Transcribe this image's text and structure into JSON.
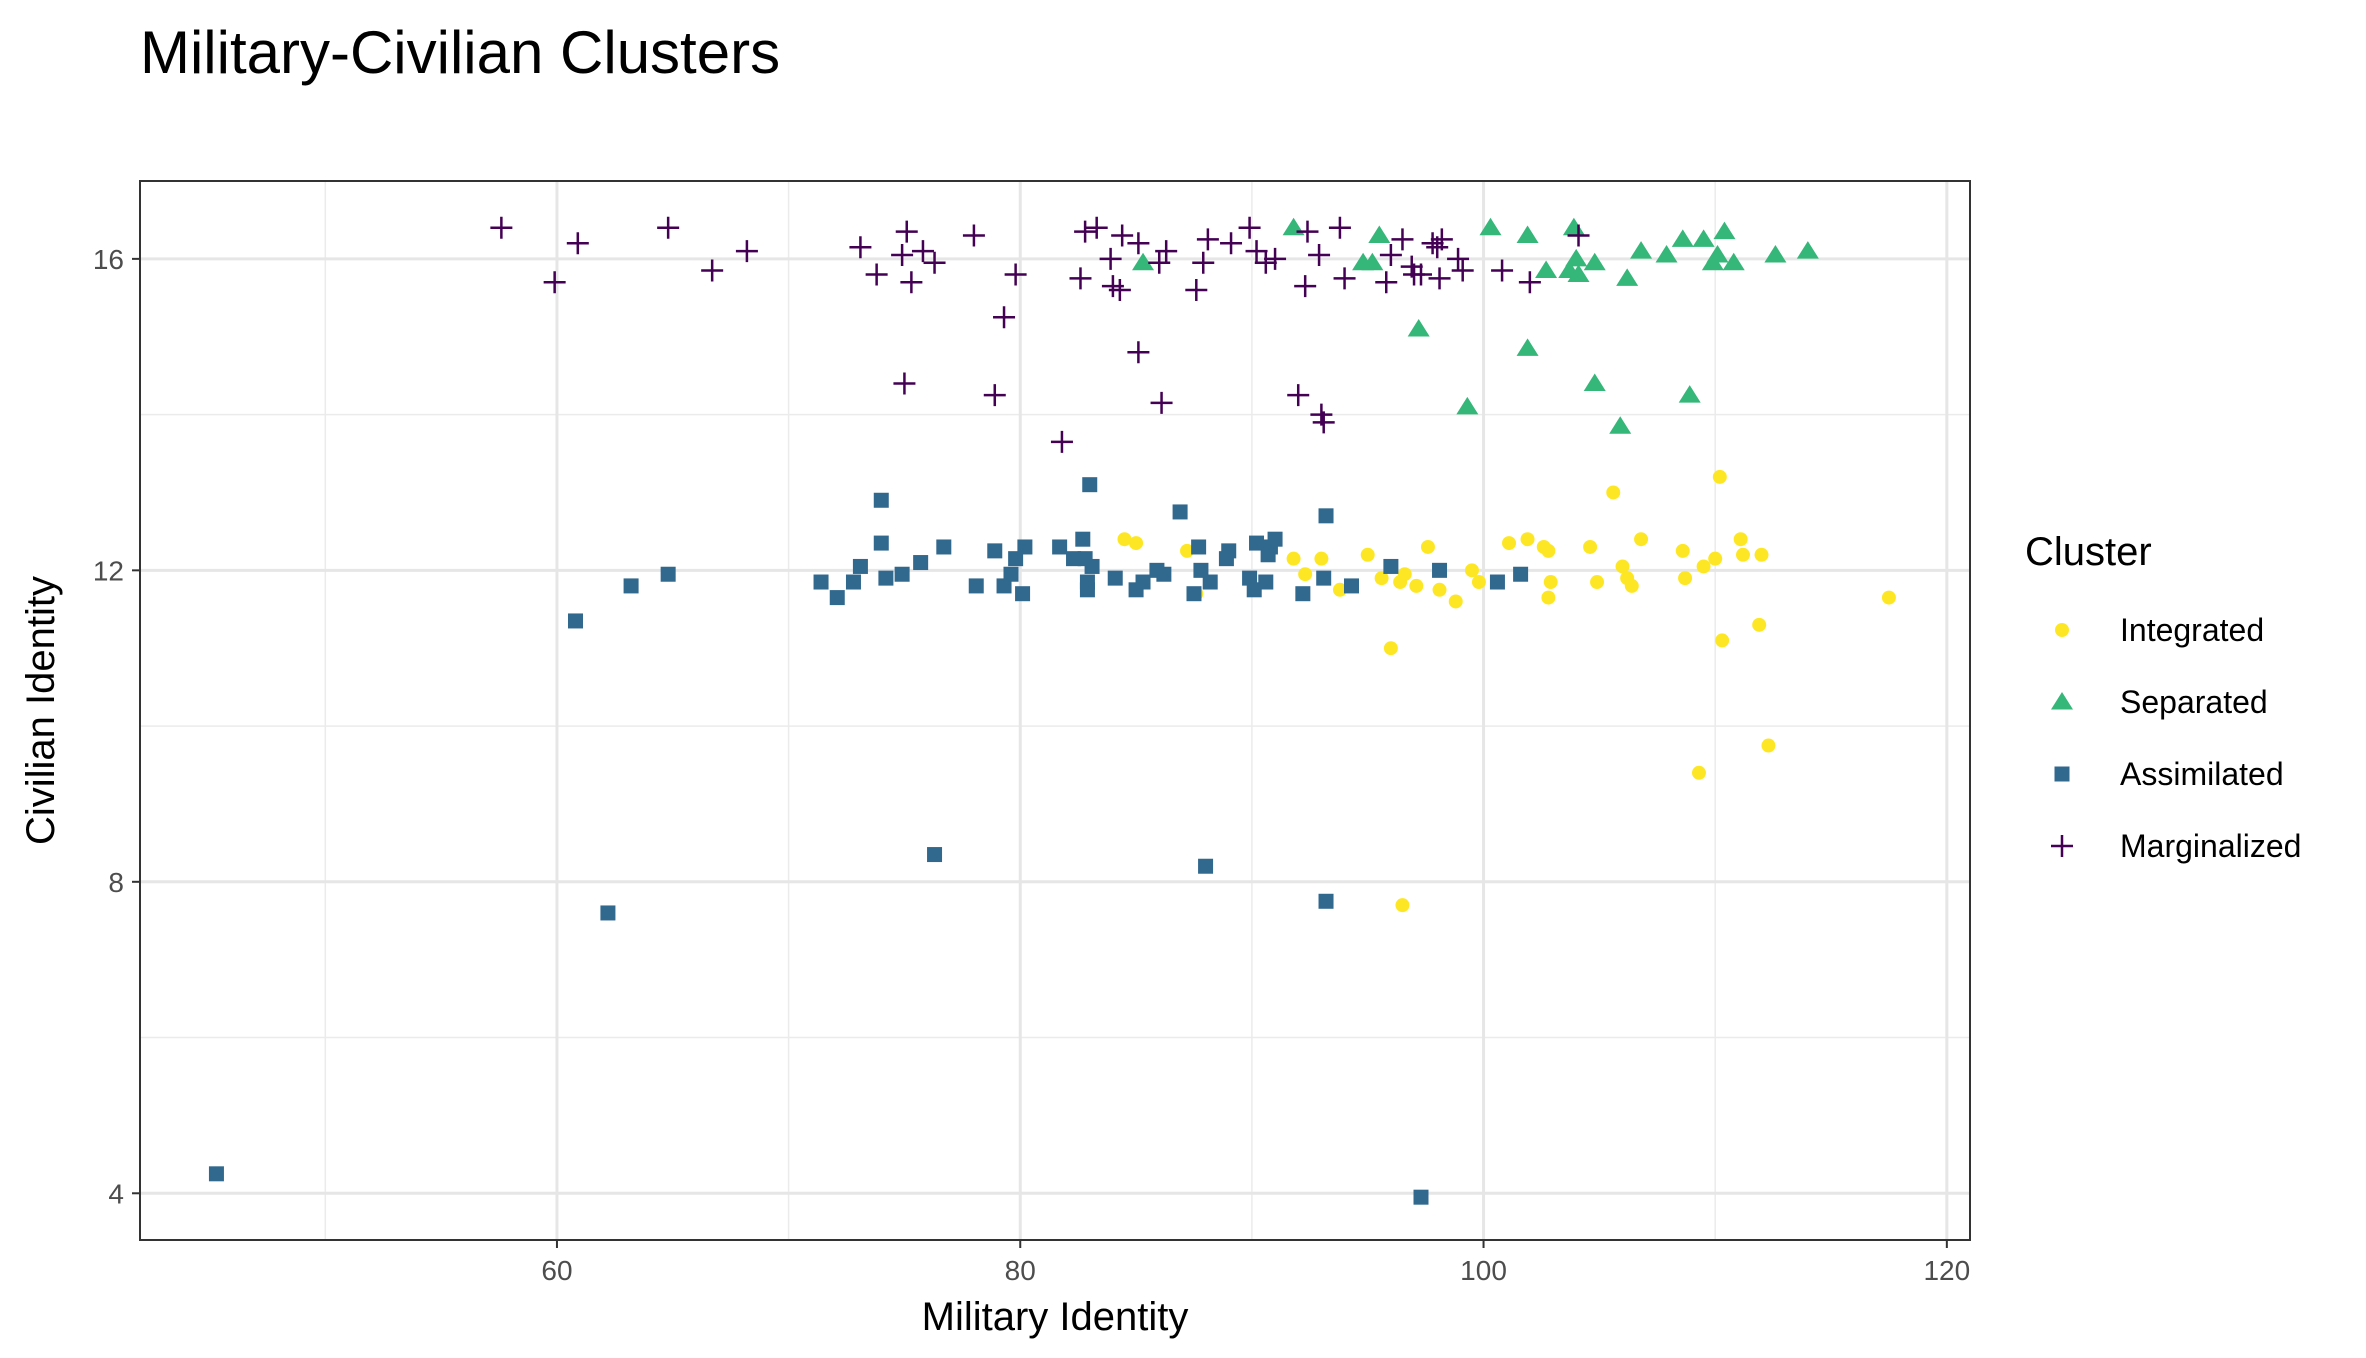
{
  "chart_data": {
    "type": "scatter",
    "title": "Military-Civilian Clusters",
    "xlabel": "Military Identity",
    "ylabel": "Civilian Identity",
    "xlim": [
      42,
      121
    ],
    "ylim": [
      3.4,
      17
    ],
    "x_ticks": [
      60,
      80,
      100,
      120
    ],
    "y_ticks": [
      4,
      8,
      12,
      16
    ],
    "grid": true,
    "legend": {
      "title": "Cluster",
      "position": "right"
    },
    "series": [
      {
        "name": "Integrated",
        "color": "#fde725",
        "shape": "circle",
        "points": [
          [
            84.5,
            12.4
          ],
          [
            85.0,
            12.35
          ],
          [
            87.2,
            12.25
          ],
          [
            87.6,
            11.7
          ],
          [
            91.8,
            12.15
          ],
          [
            92.3,
            11.95
          ],
          [
            93.0,
            12.15
          ],
          [
            93.8,
            11.75
          ],
          [
            95.0,
            12.2
          ],
          [
            95.6,
            11.9
          ],
          [
            96.0,
            11.0
          ],
          [
            96.4,
            11.85
          ],
          [
            96.6,
            11.95
          ],
          [
            97.1,
            11.8
          ],
          [
            97.6,
            12.3
          ],
          [
            98.1,
            11.75
          ],
          [
            98.8,
            11.6
          ],
          [
            99.5,
            12.0
          ],
          [
            99.8,
            11.85
          ],
          [
            101.1,
            12.35
          ],
          [
            101.9,
            12.4
          ],
          [
            102.6,
            12.3
          ],
          [
            102.8,
            12.25
          ],
          [
            102.8,
            11.65
          ],
          [
            102.9,
            11.85
          ],
          [
            104.6,
            12.3
          ],
          [
            104.9,
            11.85
          ],
          [
            105.6,
            13.0
          ],
          [
            106.0,
            12.05
          ],
          [
            106.2,
            11.9
          ],
          [
            106.4,
            11.8
          ],
          [
            106.8,
            12.4
          ],
          [
            108.6,
            12.25
          ],
          [
            108.7,
            11.9
          ],
          [
            109.3,
            9.4
          ],
          [
            109.5,
            12.05
          ],
          [
            110.0,
            12.15
          ],
          [
            110.2,
            13.2
          ],
          [
            110.3,
            11.1
          ],
          [
            111.1,
            12.4
          ],
          [
            111.2,
            12.2
          ],
          [
            111.9,
            11.3
          ],
          [
            112.0,
            12.2
          ],
          [
            112.3,
            9.75
          ],
          [
            117.5,
            11.65
          ],
          [
            96.5,
            7.7
          ]
        ]
      },
      {
        "name": "Separated",
        "color": "#35b779",
        "shape": "triangle",
        "points": [
          [
            85.3,
            15.95
          ],
          [
            91.8,
            16.4
          ],
          [
            94.8,
            15.95
          ],
          [
            95.2,
            15.95
          ],
          [
            95.5,
            16.3
          ],
          [
            97.2,
            15.1
          ],
          [
            99.3,
            14.1
          ],
          [
            100.3,
            16.4
          ],
          [
            101.9,
            16.3
          ],
          [
            101.9,
            14.85
          ],
          [
            102.7,
            15.85
          ],
          [
            103.7,
            15.85
          ],
          [
            103.9,
            16.4
          ],
          [
            104.0,
            16.0
          ],
          [
            104.1,
            15.8
          ],
          [
            104.8,
            15.95
          ],
          [
            104.8,
            14.4
          ],
          [
            105.9,
            13.85
          ],
          [
            106.2,
            15.75
          ],
          [
            106.8,
            16.1
          ],
          [
            107.9,
            16.05
          ],
          [
            108.6,
            16.25
          ],
          [
            108.9,
            14.25
          ],
          [
            109.5,
            16.25
          ],
          [
            109.9,
            15.95
          ],
          [
            110.1,
            16.05
          ],
          [
            110.4,
            16.35
          ],
          [
            110.8,
            15.95
          ],
          [
            112.6,
            16.05
          ],
          [
            114.0,
            16.1
          ]
        ]
      },
      {
        "name": "Assimilated",
        "color": "#31688e",
        "shape": "square",
        "points": [
          [
            45.3,
            4.25
          ],
          [
            60.8,
            11.35
          ],
          [
            62.2,
            7.6
          ],
          [
            63.2,
            11.8
          ],
          [
            64.8,
            11.95
          ],
          [
            71.4,
            11.85
          ],
          [
            72.1,
            11.65
          ],
          [
            72.8,
            11.85
          ],
          [
            73.1,
            12.05
          ],
          [
            74.0,
            12.9
          ],
          [
            74.0,
            12.35
          ],
          [
            74.2,
            11.9
          ],
          [
            74.9,
            11.95
          ],
          [
            75.7,
            12.1
          ],
          [
            76.3,
            8.35
          ],
          [
            76.7,
            12.3
          ],
          [
            78.1,
            11.8
          ],
          [
            78.9,
            12.25
          ],
          [
            79.3,
            11.8
          ],
          [
            79.6,
            11.95
          ],
          [
            79.8,
            12.15
          ],
          [
            80.1,
            11.7
          ],
          [
            80.2,
            12.3
          ],
          [
            81.7,
            12.3
          ],
          [
            82.3,
            12.15
          ],
          [
            82.7,
            12.4
          ],
          [
            82.8,
            12.15
          ],
          [
            82.9,
            11.75
          ],
          [
            82.9,
            11.85
          ],
          [
            83.0,
            13.1
          ],
          [
            83.1,
            12.05
          ],
          [
            84.1,
            11.9
          ],
          [
            85.0,
            11.75
          ],
          [
            85.3,
            11.85
          ],
          [
            85.9,
            12.0
          ],
          [
            86.2,
            11.95
          ],
          [
            86.9,
            12.75
          ],
          [
            87.5,
            11.7
          ],
          [
            87.7,
            12.3
          ],
          [
            87.8,
            12.0
          ],
          [
            88.0,
            8.2
          ],
          [
            88.2,
            11.85
          ],
          [
            88.9,
            12.15
          ],
          [
            89.0,
            12.25
          ],
          [
            89.9,
            11.9
          ],
          [
            90.1,
            11.75
          ],
          [
            90.2,
            12.35
          ],
          [
            90.6,
            11.85
          ],
          [
            90.7,
            12.2
          ],
          [
            90.8,
            12.3
          ],
          [
            91.0,
            12.4
          ],
          [
            92.2,
            11.7
          ],
          [
            93.1,
            11.9
          ],
          [
            93.2,
            12.7
          ],
          [
            93.2,
            7.75
          ],
          [
            94.3,
            11.8
          ],
          [
            96.0,
            12.05
          ],
          [
            97.3,
            3.95
          ],
          [
            98.1,
            12.0
          ],
          [
            100.6,
            11.85
          ],
          [
            101.6,
            11.95
          ]
        ]
      },
      {
        "name": "Marginalized",
        "color": "#440154",
        "shape": "plus",
        "points": [
          [
            57.6,
            16.4
          ],
          [
            59.9,
            15.7
          ],
          [
            60.9,
            16.2
          ],
          [
            64.8,
            16.4
          ],
          [
            66.7,
            15.85
          ],
          [
            68.2,
            16.1
          ],
          [
            73.1,
            16.15
          ],
          [
            73.8,
            15.8
          ],
          [
            74.9,
            16.05
          ],
          [
            75.0,
            14.4
          ],
          [
            75.1,
            16.35
          ],
          [
            75.3,
            15.7
          ],
          [
            75.8,
            16.1
          ],
          [
            76.3,
            15.95
          ],
          [
            78.0,
            16.3
          ],
          [
            78.9,
            14.25
          ],
          [
            79.3,
            15.25
          ],
          [
            79.8,
            15.8
          ],
          [
            81.8,
            13.65
          ],
          [
            82.6,
            15.75
          ],
          [
            82.8,
            16.35
          ],
          [
            83.3,
            16.4
          ],
          [
            83.9,
            16.0
          ],
          [
            84.0,
            15.65
          ],
          [
            84.3,
            15.6
          ],
          [
            84.4,
            16.3
          ],
          [
            85.1,
            16.2
          ],
          [
            85.1,
            14.8
          ],
          [
            86.0,
            15.95
          ],
          [
            86.1,
            14.15
          ],
          [
            86.3,
            16.1
          ],
          [
            87.6,
            15.6
          ],
          [
            87.9,
            15.95
          ],
          [
            88.1,
            16.25
          ],
          [
            89.1,
            16.2
          ],
          [
            89.9,
            16.4
          ],
          [
            90.2,
            16.1
          ],
          [
            90.6,
            15.95
          ],
          [
            91.0,
            16.0
          ],
          [
            92.0,
            14.25
          ],
          [
            92.3,
            15.65
          ],
          [
            92.4,
            16.35
          ],
          [
            92.9,
            16.05
          ],
          [
            93.0,
            14.0
          ],
          [
            93.1,
            13.9
          ],
          [
            93.8,
            16.4
          ],
          [
            94.0,
            15.75
          ],
          [
            95.8,
            15.7
          ],
          [
            96.0,
            16.05
          ],
          [
            96.5,
            16.25
          ],
          [
            96.9,
            15.9
          ],
          [
            97.0,
            15.8
          ],
          [
            97.3,
            15.8
          ],
          [
            97.8,
            16.2
          ],
          [
            98.0,
            16.15
          ],
          [
            98.1,
            15.75
          ],
          [
            98.2,
            16.25
          ],
          [
            98.9,
            16.0
          ],
          [
            99.1,
            15.85
          ],
          [
            100.8,
            15.85
          ],
          [
            102.0,
            15.7
          ],
          [
            104.1,
            16.3
          ]
        ]
      }
    ]
  }
}
